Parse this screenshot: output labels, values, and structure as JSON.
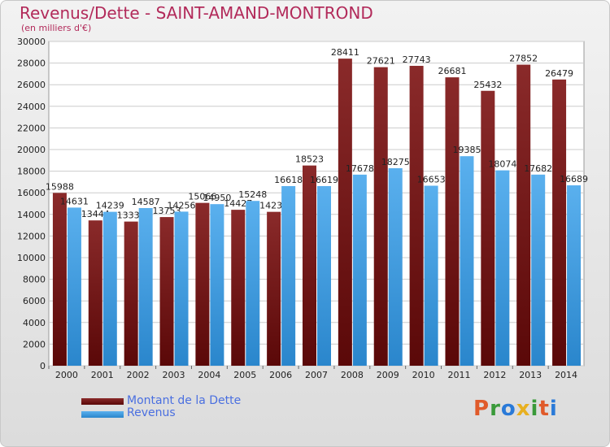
{
  "chart_data": {
    "type": "bar",
    "title": "Revenus/Dette - SAINT-AMAND-MONTROND",
    "subtitle": "(en milliers d'€)",
    "categories": [
      "2000",
      "2001",
      "2002",
      "2003",
      "2004",
      "2005",
      "2006",
      "2007",
      "2008",
      "2009",
      "2010",
      "2011",
      "2012",
      "2013",
      "2014"
    ],
    "series": [
      {
        "name": "Montant de la Dette",
        "color": "#7a1a1a",
        "values": [
          15988,
          13444,
          13337,
          13753,
          15066,
          14427,
          14237,
          18523,
          28411,
          27621,
          27743,
          26681,
          25432,
          27852,
          26479
        ]
      },
      {
        "name": "Revenus",
        "color": "#4aa6e8",
        "values": [
          14631,
          14239,
          14587,
          14256,
          14950,
          15248,
          16618,
          16619,
          17678,
          18275,
          16653,
          19385,
          18074,
          17682,
          16689
        ]
      }
    ],
    "value_labels": [
      [
        "15988",
        "13444",
        "13337",
        "13753",
        "15066",
        "14427",
        "14237",
        "18523",
        "28411",
        "27621",
        "27743",
        "26681",
        "25432",
        "27852",
        "26479"
      ],
      [
        "14631",
        "14239",
        "14587",
        "14256",
        "14950",
        "15248",
        "16618",
        "16619",
        "17678",
        "18275",
        "16653",
        "19385",
        "18074",
        "17682",
        "16689"
      ]
    ],
    "yticks": [
      "0",
      "2000",
      "4000",
      "6000",
      "8000",
      "10000",
      "12000",
      "14000",
      "16000",
      "18000",
      "20000",
      "22000",
      "24000",
      "26000",
      "28000",
      "30000"
    ],
    "ylim": [
      0,
      30000
    ],
    "grid": true,
    "legend_position": "bottom-left"
  },
  "brand": {
    "text": "Proxiti",
    "letters": [
      {
        "ch": "P",
        "color": "#e05a2a"
      },
      {
        "ch": "r",
        "color": "#3a9a3a"
      },
      {
        "ch": "o",
        "color": "#2a7ad8"
      },
      {
        "ch": "x",
        "color": "#e8b020"
      },
      {
        "ch": "i",
        "color": "#3a9a3a"
      },
      {
        "ch": "t",
        "color": "#e05a2a"
      },
      {
        "ch": "i",
        "color": "#2a7ad8"
      }
    ]
  }
}
